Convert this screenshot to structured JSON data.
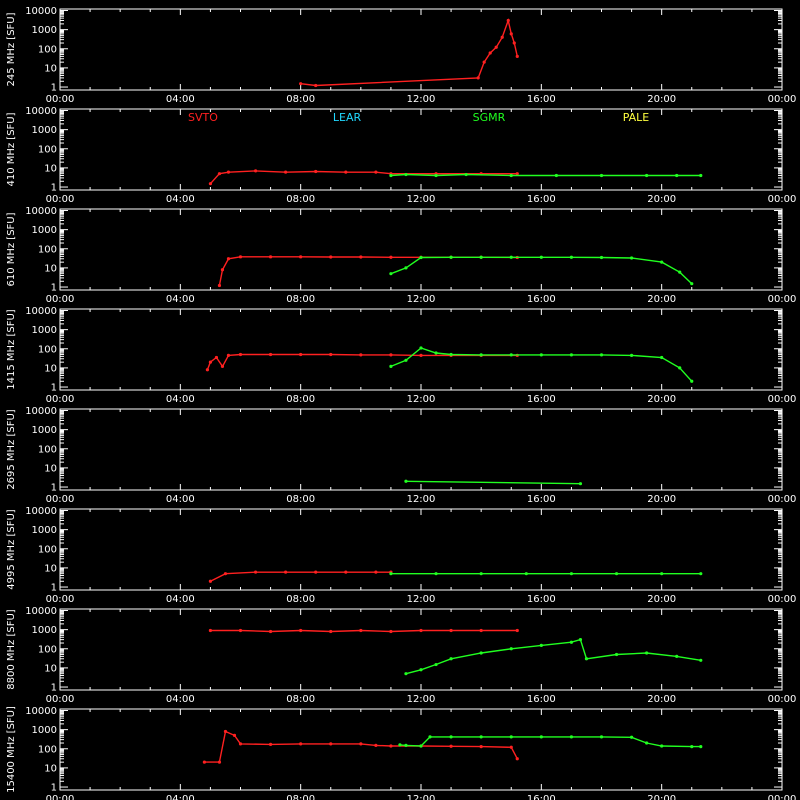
{
  "colors": {
    "background": "#000000",
    "axes": "#ffffff",
    "SVTO": "#ff2020",
    "LEAR": "#20d8ff",
    "SGMR": "#20ff20",
    "PALE": "#ffff40"
  },
  "legend": [
    {
      "name": "SVTO",
      "color": "#ff2020"
    },
    {
      "name": "LEAR",
      "color": "#20d8ff"
    },
    {
      "name": "SGMR",
      "color": "#20ff20"
    },
    {
      "name": "PALE",
      "color": "#ffff40"
    }
  ],
  "x_ticks": [
    "00:00",
    "04:00",
    "08:00",
    "12:00",
    "16:00",
    "20:00",
    "00:00"
  ],
  "y_ticks": [
    "1",
    "10",
    "100",
    "1000",
    "10000"
  ],
  "chart_data": [
    {
      "type": "line",
      "ylabel": "245 MHz [SFU]",
      "ylim": [
        0.7,
        12000
      ],
      "yscale": "log",
      "xlim": [
        0,
        24
      ],
      "series": [
        {
          "name": "SVTO",
          "points": [
            [
              8.0,
              1.5
            ],
            [
              8.5,
              1.2
            ],
            [
              13.9,
              3
            ],
            [
              14.1,
              20
            ],
            [
              14.3,
              60
            ],
            [
              14.5,
              120
            ],
            [
              14.7,
              400
            ],
            [
              14.9,
              3000
            ],
            [
              15.0,
              600
            ],
            [
              15.1,
              200
            ],
            [
              15.2,
              40
            ]
          ]
        },
        {
          "name": "SGMR",
          "points": []
        }
      ]
    },
    {
      "type": "line",
      "ylabel": "410 MHz [SFU]",
      "ylim": [
        0.7,
        12000
      ],
      "yscale": "log",
      "xlim": [
        0,
        24
      ],
      "series": [
        {
          "name": "SVTO",
          "points": [
            [
              5.0,
              1.5
            ],
            [
              5.3,
              5
            ],
            [
              5.6,
              6
            ],
            [
              6.5,
              7
            ],
            [
              7.5,
              6
            ],
            [
              8.5,
              6.5
            ],
            [
              9.5,
              6
            ],
            [
              10.5,
              6
            ],
            [
              11.0,
              5
            ],
            [
              12.5,
              5
            ],
            [
              14.0,
              5
            ],
            [
              15.2,
              5
            ]
          ]
        },
        {
          "name": "SGMR",
          "points": [
            [
              11.0,
              4
            ],
            [
              11.5,
              4.5
            ],
            [
              12.5,
              4
            ],
            [
              13.5,
              4.5
            ],
            [
              15.0,
              4
            ],
            [
              16.5,
              4
            ],
            [
              18.0,
              4
            ],
            [
              19.5,
              4
            ],
            [
              20.5,
              4
            ],
            [
              21.3,
              4
            ]
          ]
        }
      ]
    },
    {
      "type": "line",
      "ylabel": "610 MHz [SFU]",
      "ylim": [
        0.7,
        12000
      ],
      "yscale": "log",
      "xlim": [
        0,
        24
      ],
      "series": [
        {
          "name": "SVTO",
          "points": [
            [
              5.3,
              1.2
            ],
            [
              5.4,
              8
            ],
            [
              5.6,
              30
            ],
            [
              6.0,
              38
            ],
            [
              7.0,
              38
            ],
            [
              8.0,
              38
            ],
            [
              9.0,
              37
            ],
            [
              10.0,
              37
            ],
            [
              11.0,
              36
            ],
            [
              12.0,
              36
            ],
            [
              13.0,
              36
            ],
            [
              14.0,
              36
            ],
            [
              15.2,
              35
            ]
          ]
        },
        {
          "name": "SGMR",
          "points": [
            [
              11.0,
              5
            ],
            [
              11.5,
              10
            ],
            [
              12.0,
              35
            ],
            [
              13.0,
              36
            ],
            [
              14.0,
              36
            ],
            [
              15.0,
              36
            ],
            [
              16.0,
              36
            ],
            [
              17.0,
              36
            ],
            [
              18.0,
              35
            ],
            [
              19.0,
              33
            ],
            [
              20.0,
              20
            ],
            [
              20.6,
              6
            ],
            [
              21.0,
              1.5
            ]
          ]
        }
      ]
    },
    {
      "type": "line",
      "ylabel": "1415 MHz [SFU]",
      "ylim": [
        0.7,
        12000
      ],
      "yscale": "log",
      "xlim": [
        0,
        24
      ],
      "series": [
        {
          "name": "SVTO",
          "points": [
            [
              4.9,
              8
            ],
            [
              5.0,
              20
            ],
            [
              5.2,
              35
            ],
            [
              5.4,
              12
            ],
            [
              5.6,
              45
            ],
            [
              6.0,
              50
            ],
            [
              7.0,
              50
            ],
            [
              8.0,
              50
            ],
            [
              9.0,
              50
            ],
            [
              10.0,
              48
            ],
            [
              11.0,
              48
            ],
            [
              12.0,
              45
            ],
            [
              13.0,
              45
            ],
            [
              14.0,
              45
            ],
            [
              15.2,
              45
            ]
          ]
        },
        {
          "name": "SGMR",
          "points": [
            [
              11.0,
              12
            ],
            [
              11.5,
              25
            ],
            [
              12.0,
              110
            ],
            [
              12.5,
              60
            ],
            [
              13.0,
              50
            ],
            [
              14.0,
              48
            ],
            [
              15.0,
              48
            ],
            [
              16.0,
              48
            ],
            [
              17.0,
              48
            ],
            [
              18.0,
              48
            ],
            [
              19.0,
              45
            ],
            [
              20.0,
              35
            ],
            [
              20.6,
              10
            ],
            [
              21.0,
              2
            ]
          ]
        }
      ]
    },
    {
      "type": "line",
      "ylabel": "2695 MHz [SFU]",
      "ylim": [
        0.7,
        12000
      ],
      "yscale": "log",
      "xlim": [
        0,
        24
      ],
      "series": [
        {
          "name": "SVTO",
          "points": []
        },
        {
          "name": "SGMR",
          "points": [
            [
              11.5,
              2
            ],
            [
              17.3,
              1.5
            ]
          ]
        }
      ]
    },
    {
      "type": "line",
      "ylabel": "4995 MHz [SFU]",
      "ylim": [
        0.7,
        12000
      ],
      "yscale": "log",
      "xlim": [
        0,
        24
      ],
      "series": [
        {
          "name": "SVTO",
          "points": [
            [
              5.0,
              2
            ],
            [
              5.5,
              5
            ],
            [
              6.5,
              6
            ],
            [
              7.5,
              6
            ],
            [
              8.5,
              6
            ],
            [
              9.5,
              6
            ],
            [
              10.5,
              6
            ],
            [
              11.0,
              6
            ]
          ]
        },
        {
          "name": "SGMR",
          "points": [
            [
              11.0,
              5
            ],
            [
              12.5,
              5
            ],
            [
              14.0,
              5
            ],
            [
              15.5,
              5
            ],
            [
              17.0,
              5
            ],
            [
              18.5,
              5
            ],
            [
              20.0,
              5
            ],
            [
              21.3,
              5
            ]
          ]
        }
      ]
    },
    {
      "type": "line",
      "ylabel": "8800 MHz [SFU]",
      "ylim": [
        0.7,
        12000
      ],
      "yscale": "log",
      "xlim": [
        0,
        24
      ],
      "series": [
        {
          "name": "SVTO",
          "points": [
            [
              5.0,
              900
            ],
            [
              6.0,
              900
            ],
            [
              7.0,
              800
            ],
            [
              8.0,
              900
            ],
            [
              9.0,
              800
            ],
            [
              10.0,
              900
            ],
            [
              11.0,
              800
            ],
            [
              12.0,
              900
            ],
            [
              13.0,
              900
            ],
            [
              14.0,
              900
            ],
            [
              15.2,
              900
            ]
          ]
        },
        {
          "name": "SGMR",
          "points": [
            [
              11.5,
              5
            ],
            [
              12.0,
              8
            ],
            [
              12.5,
              15
            ],
            [
              13.0,
              30
            ],
            [
              14.0,
              60
            ],
            [
              15.0,
              100
            ],
            [
              16.0,
              150
            ],
            [
              17.0,
              220
            ],
            [
              17.3,
              300
            ],
            [
              17.5,
              30
            ],
            [
              18.5,
              50
            ],
            [
              19.5,
              60
            ],
            [
              20.5,
              40
            ],
            [
              21.3,
              25
            ]
          ]
        }
      ]
    },
    {
      "type": "line",
      "ylabel": "15400 MHz [SFU]",
      "ylim": [
        0.7,
        12000
      ],
      "yscale": "log",
      "xlim": [
        0,
        24
      ],
      "series": [
        {
          "name": "SVTO",
          "points": [
            [
              4.8,
              20
            ],
            [
              5.3,
              20
            ],
            [
              5.5,
              800
            ],
            [
              5.8,
              500
            ],
            [
              6.0,
              180
            ],
            [
              7.0,
              170
            ],
            [
              8.0,
              180
            ],
            [
              9.0,
              180
            ],
            [
              10.0,
              180
            ],
            [
              10.5,
              150
            ],
            [
              11.0,
              140
            ],
            [
              12.0,
              140
            ],
            [
              13.0,
              135
            ],
            [
              14.0,
              130
            ],
            [
              15.0,
              120
            ],
            [
              15.2,
              30
            ]
          ]
        },
        {
          "name": "SGMR",
          "points": [
            [
              11.3,
              160
            ],
            [
              11.5,
              150
            ],
            [
              12.0,
              140
            ],
            [
              12.3,
              420
            ],
            [
              13.0,
              420
            ],
            [
              14.0,
              420
            ],
            [
              15.0,
              420
            ],
            [
              16.0,
              420
            ],
            [
              17.0,
              420
            ],
            [
              18.0,
              420
            ],
            [
              19.0,
              400
            ],
            [
              19.5,
              200
            ],
            [
              20.0,
              140
            ],
            [
              21.0,
              130
            ],
            [
              21.3,
              130
            ]
          ]
        }
      ]
    }
  ]
}
